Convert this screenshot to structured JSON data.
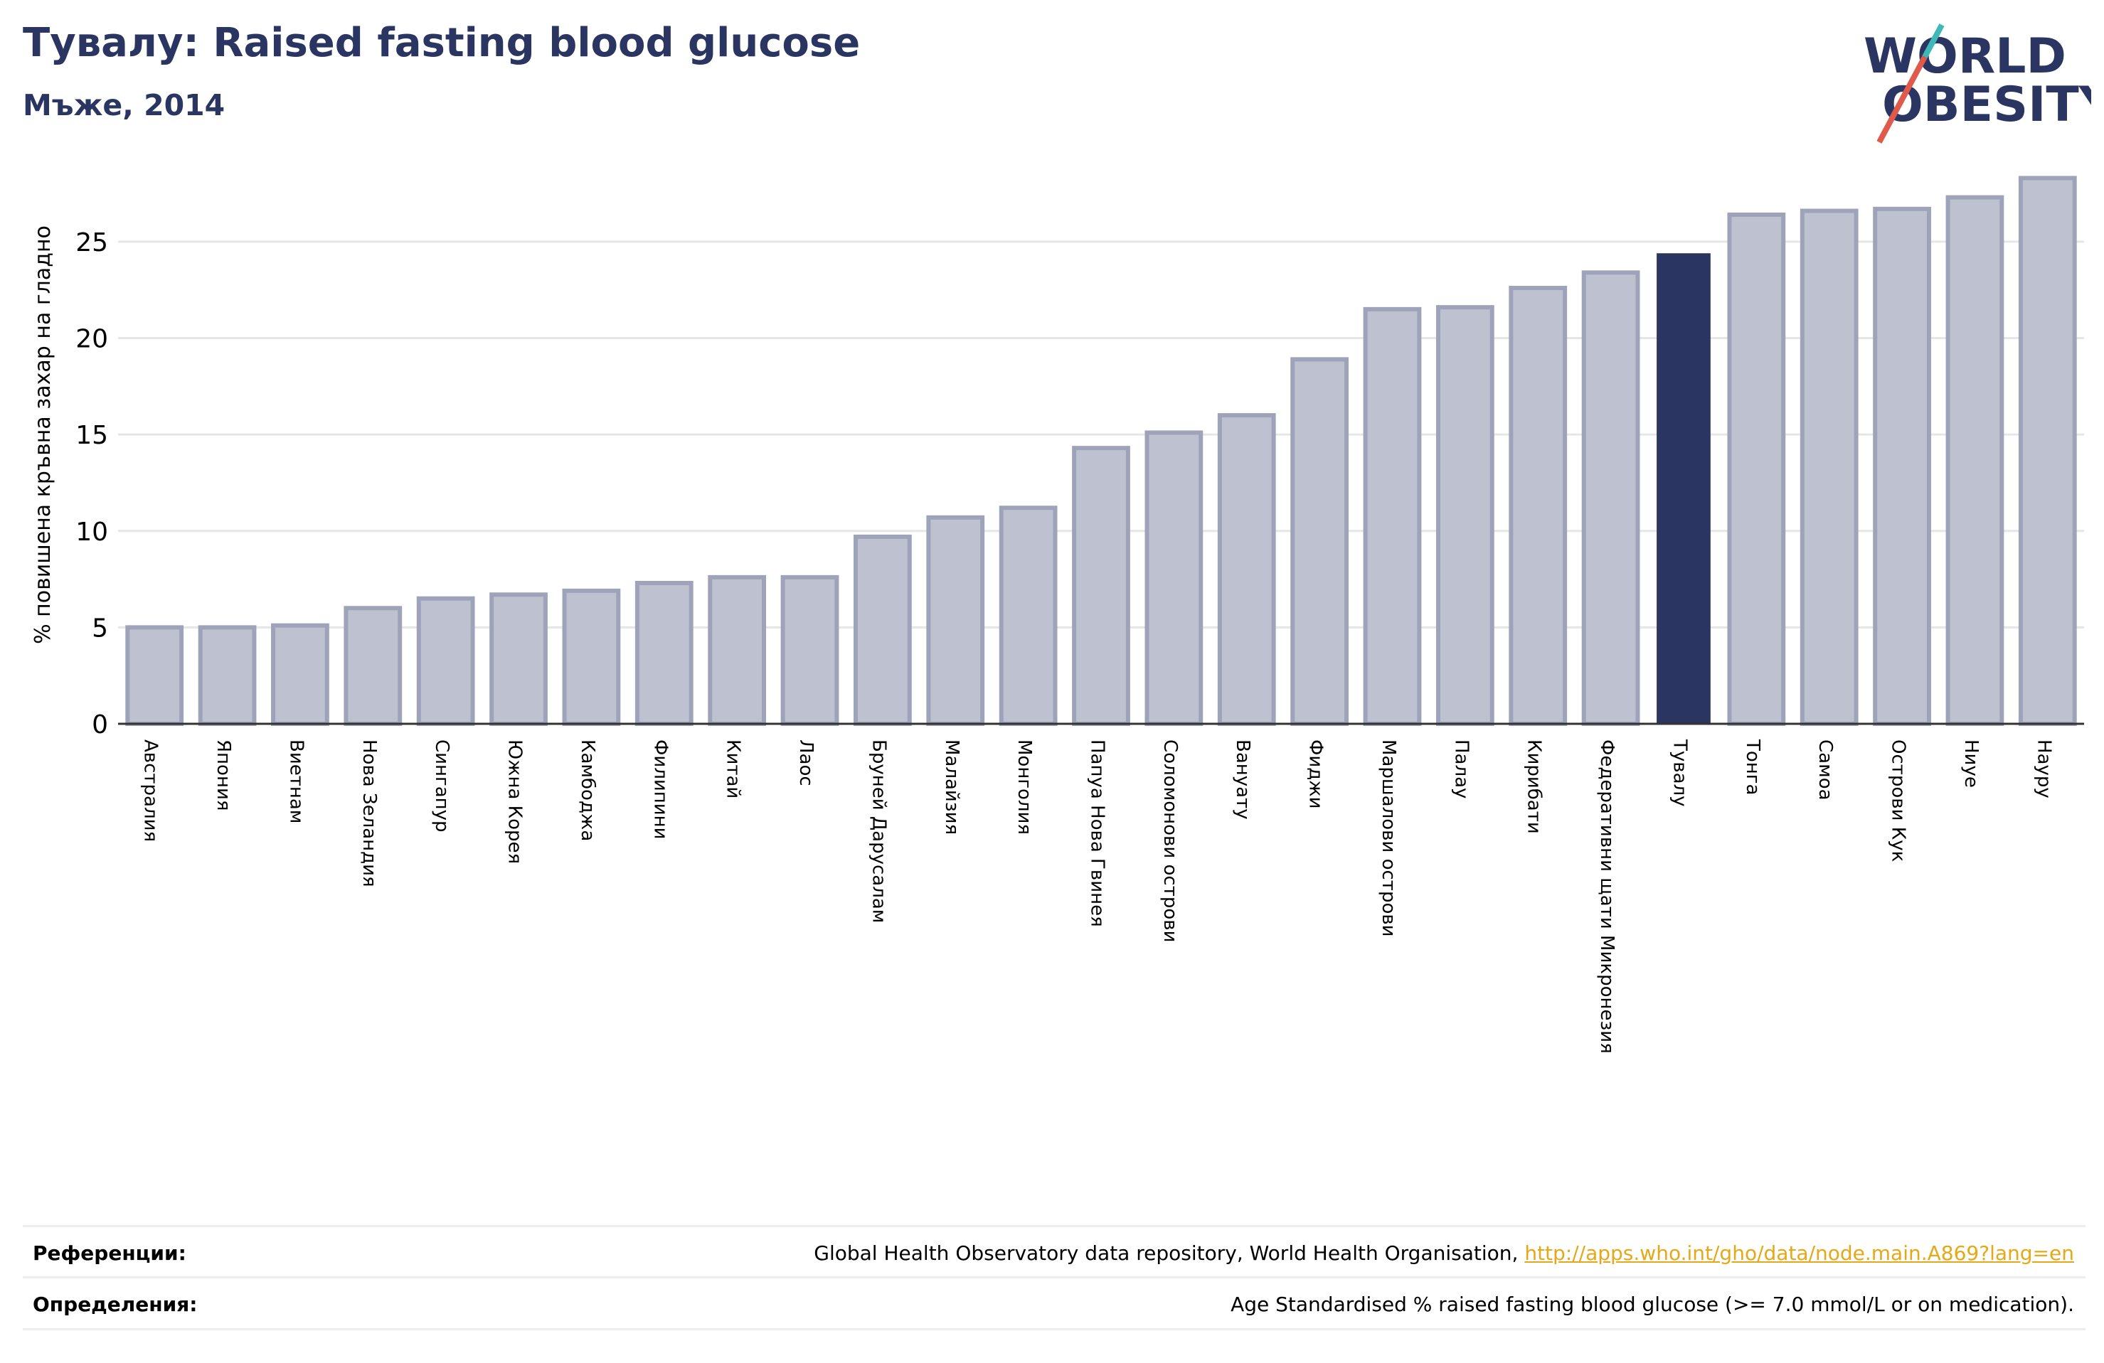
{
  "header": {
    "title": "Тувалу: Raised fasting blood glucose",
    "subtitle": "Мъже, 2014"
  },
  "logo": {
    "line1": "WORLD",
    "line2": "OBESITY",
    "text_color": "#2b3561",
    "slash_colors": [
      "#e05a4b",
      "#3fb8b8"
    ]
  },
  "colors": {
    "bar": "#bec1cf",
    "bar_border": "#9ea3b9",
    "highlight": "#2b3561",
    "grid": "#e6e6e6",
    "axis": "#333333"
  },
  "chart_data": {
    "type": "bar",
    "title": "Тувалу: Raised fasting blood glucose",
    "subtitle": "Мъже, 2014",
    "ylabel": "% повишена кръвна захар на гладно",
    "xlabel": "",
    "ylim": [
      0,
      28.5
    ],
    "yticks": [
      0,
      5,
      10,
      15,
      20,
      25
    ],
    "grid": true,
    "highlight": "Тувалу",
    "categories": [
      "Австралия",
      "Япония",
      "Виетнам",
      "Нова Зеландия",
      "Сингапур",
      "Южна Корея",
      "Камбоджа",
      "Филипини",
      "Китай",
      "Лаос",
      "Бруней Дарусалам",
      "Малайзия",
      "Монголия",
      "Папуа Нова Гвинея",
      "Соломонови острови",
      "Вануату",
      "Фиджи",
      "Маршалови острови",
      "Палау",
      "Кирибати",
      "Федеративни щати Микронезия",
      "Тувалу",
      "Тонга",
      "Самоа",
      "Острови Кук",
      "Ниуе",
      "Науру"
    ],
    "values": [
      5.0,
      5.0,
      5.1,
      6.0,
      6.5,
      6.7,
      6.9,
      7.3,
      7.6,
      7.6,
      9.7,
      10.7,
      11.2,
      14.3,
      15.1,
      16.0,
      18.9,
      21.5,
      21.6,
      22.6,
      23.4,
      24.4,
      26.4,
      26.6,
      26.7,
      27.3,
      28.3
    ]
  },
  "footer": {
    "references_label": "Референции:",
    "references_text": "Global Health Observatory data repository, World Health Organisation,",
    "references_link": "http://apps.who.int/gho/data/node.main.A869?lang=en",
    "definitions_label": "Определения:",
    "definitions_text": "Age Standardised % raised fasting blood glucose (>= 7.0 mmol/L or on medication)."
  }
}
